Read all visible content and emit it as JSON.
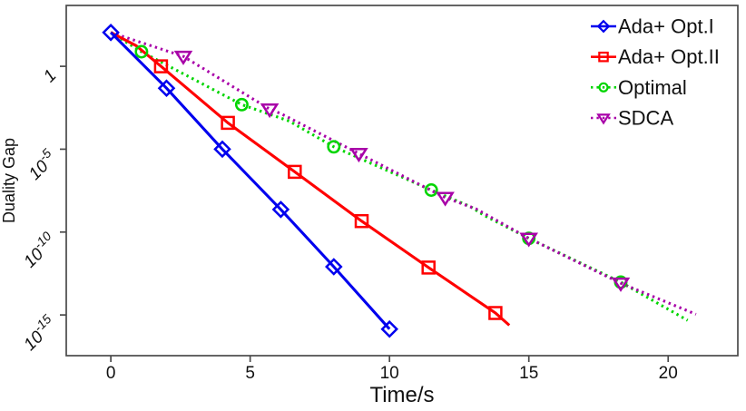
{
  "figure": {
    "background": "#ffffff",
    "frame_color": "#4a4a4a",
    "text_color": "#111111"
  },
  "chart_data": {
    "type": "line",
    "title": "",
    "xlabel": "Time/s",
    "ylabel": "Duality Gap",
    "xscale": "linear",
    "yscale": "log",
    "xlim": [
      -1.6,
      22.5
    ],
    "ylim": [
      3.5e-18,
      4700
    ],
    "grid": false,
    "legend": {
      "position": "top-right",
      "border": false
    },
    "x_ticks": [
      {
        "label": "0",
        "value": 0
      },
      {
        "label": "5",
        "value": 5
      },
      {
        "label": "10",
        "value": 10
      },
      {
        "label": "15",
        "value": 15
      },
      {
        "label": "20",
        "value": 20
      }
    ],
    "y_ticks": [
      {
        "base": "1",
        "exp": "",
        "value": 1
      },
      {
        "base": "10",
        "exp": "-5",
        "value": 1e-05
      },
      {
        "base": "10",
        "exp": "-10",
        "value": 1e-10
      },
      {
        "base": "10",
        "exp": "-15",
        "value": 1e-15
      }
    ],
    "series": [
      {
        "name": "Ada+ Opt.I",
        "color": "#0000EE",
        "linestyle": "solid",
        "marker": "diamond",
        "markers": [
          [
            0,
            110.0
          ],
          [
            2,
            0.048
          ],
          [
            4,
            1e-05
          ],
          [
            6.1,
            2.3e-09
          ],
          [
            8,
            8.1e-13
          ],
          [
            10,
            1.4e-16
          ]
        ],
        "line": [
          [
            0,
            110.0
          ],
          [
            2,
            0.048
          ],
          [
            4,
            1e-05
          ],
          [
            6.1,
            2.3e-09
          ],
          [
            8,
            8.1e-13
          ],
          [
            10,
            1.4e-16
          ]
        ]
      },
      {
        "name": "Ada+ Opt.II",
        "color": "#FF0000",
        "linestyle": "solid",
        "marker": "square",
        "markers": [
          [
            1.8,
            1.0
          ],
          [
            4.2,
            0.00039
          ],
          [
            6.6,
            4.3e-07
          ],
          [
            9.0,
            4.6e-10
          ],
          [
            11.4,
            7.2e-13
          ],
          [
            13.8,
            1.3e-15
          ]
        ],
        "line": [
          [
            0,
            110.0
          ],
          [
            0.9,
            18.0
          ],
          [
            1.8,
            1.0
          ],
          [
            4.2,
            0.00039
          ],
          [
            6.6,
            4.3e-07
          ],
          [
            9.0,
            4.6e-10
          ],
          [
            11.4,
            7.2e-13
          ],
          [
            13.8,
            1.3e-15
          ],
          [
            14.3,
            2.4e-16
          ]
        ]
      },
      {
        "name": "Optimal",
        "color": "#00D500",
        "linestyle": "dotted",
        "marker": "circle",
        "markers": [
          [
            1.1,
            7.6
          ],
          [
            4.7,
            0.0049
          ],
          [
            8.0,
            1.4e-05
          ],
          [
            11.5,
            3.4e-08
          ],
          [
            15.0,
            4.2e-11
          ],
          [
            18.3,
            9.5e-14
          ]
        ],
        "line": [
          [
            0,
            110.0
          ],
          [
            1.1,
            7.6
          ],
          [
            4.7,
            0.0049
          ],
          [
            6.4,
            0.0005
          ],
          [
            8.0,
            1.4e-05
          ],
          [
            11.5,
            3.4e-08
          ],
          [
            12.9,
            3.5e-09
          ],
          [
            13.4,
            1e-09
          ],
          [
            15.0,
            4.2e-11
          ],
          [
            18.3,
            9.5e-14
          ],
          [
            20.7,
            4.7e-16
          ]
        ]
      },
      {
        "name": "SDCA",
        "color": "#A800A8",
        "linestyle": "dotted",
        "marker": "triangle-down",
        "markers": [
          [
            2.6,
            4.0
          ],
          [
            5.7,
            0.0026
          ],
          [
            8.9,
            5.4e-06
          ],
          [
            12.0,
            1.2e-08
          ],
          [
            15.0,
            4.2e-11
          ],
          [
            18.3,
            8.3e-14
          ]
        ],
        "line": [
          [
            0,
            110.0
          ],
          [
            2.6,
            4.0
          ],
          [
            5.7,
            0.0026
          ],
          [
            6.1,
            0.0014
          ],
          [
            8.9,
            5.4e-06
          ],
          [
            12.0,
            1.2e-08
          ],
          [
            13.1,
            2.5e-09
          ],
          [
            15.0,
            4.2e-11
          ],
          [
            18.3,
            8.3e-14
          ],
          [
            21.0,
            1.1e-15
          ]
        ]
      }
    ]
  }
}
